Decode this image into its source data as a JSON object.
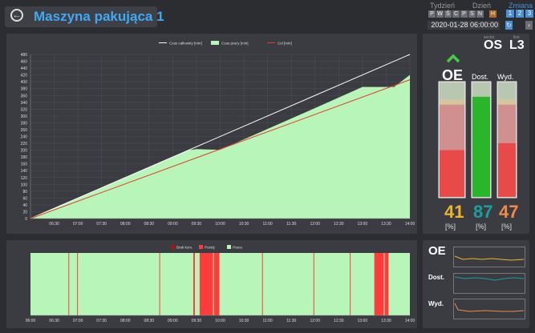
{
  "header": {
    "back_icon": "back-arrow-icon",
    "title": "Maszyna pakująca 1",
    "week_label": "Tydzień",
    "day_label": "Dzień",
    "shift_label": "Zmiana",
    "weekdays": [
      "P",
      "W",
      "Ś",
      "C",
      "P",
      "S",
      "N"
    ],
    "active_weekday_index": 7,
    "active_day_marker": "H",
    "shifts": [
      "1",
      "2",
      "3"
    ],
    "datetime": "2020-01-28 06:00:00"
  },
  "location": {
    "sector_label": "sector",
    "sector_value": "OS",
    "line_label": "line",
    "line_value": "L3"
  },
  "colors": {
    "total_time": "#ffffff",
    "work_time": "#b8f5b8",
    "target": "#e23b2b",
    "failure": "#a01818",
    "stop": "#ff3b3b",
    "work": "#b8f5b8",
    "oe_up_arrow": "#44cc44",
    "oe_value": "#f0b429",
    "availability_value": "#1aa0a0",
    "efficiency_value": "#f08a4a"
  },
  "chart_data": [
    {
      "type": "area",
      "title": "",
      "legend": [
        "Czas całkowity [min]",
        "Czas pracy [min]",
        "Cel [min]"
      ],
      "legend_placement": "top-center",
      "grid": true,
      "ylim": [
        0,
        480
      ],
      "yticks": [
        0,
        20,
        40,
        60,
        80,
        100,
        120,
        140,
        160,
        180,
        200,
        220,
        240,
        260,
        280,
        300,
        320,
        340,
        360,
        380,
        400,
        420,
        440,
        460,
        480
      ],
      "xlim": [
        "06:00",
        "14:00"
      ],
      "xticks": [
        "06:30",
        "07:00",
        "07:30",
        "08:00",
        "08:30",
        "09:00",
        "09:30",
        "10:00",
        "10:30",
        "11:00",
        "11:30",
        "12:00",
        "12:30",
        "13:00",
        "13:30",
        "14:00"
      ],
      "series": [
        {
          "name": "Czas całkowity [min]",
          "kind": "line",
          "points": [
            [
              "06:00",
              0
            ],
            [
              "14:00",
              480
            ]
          ]
        },
        {
          "name": "Czas pracy [min]",
          "kind": "area",
          "points": [
            [
              "06:00",
              0
            ],
            [
              "09:20",
              200
            ],
            [
              "09:30",
              203
            ],
            [
              "10:00",
              201
            ],
            [
              "12:00",
              323
            ],
            [
              "13:00",
              385
            ],
            [
              "13:40",
              385
            ],
            [
              "14:00",
              420
            ]
          ]
        },
        {
          "name": "Cel [min]",
          "kind": "line",
          "points": [
            [
              "06:00",
              0
            ],
            [
              "14:00",
              406
            ]
          ]
        }
      ]
    },
    {
      "type": "timeline",
      "title": "",
      "legend": [
        "Brak kom.",
        "Postój",
        "Praca"
      ],
      "legend_placement": "top-center",
      "xlim": [
        "06:00",
        "14:00"
      ],
      "xticks": [
        "06:00",
        "06:30",
        "07:00",
        "07:30",
        "08:00",
        "08:30",
        "09:00",
        "09:30",
        "10:00",
        "10:30",
        "11:00",
        "11:30",
        "12:00",
        "12:30",
        "13:00",
        "13:30",
        "14:00"
      ],
      "stop_intervals": [
        [
          "06:48",
          "06:49"
        ],
        [
          "06:59",
          "07:00"
        ],
        [
          "08:43",
          "08:44"
        ],
        [
          "09:26",
          "09:28"
        ],
        [
          "09:34",
          "09:51"
        ],
        [
          "09:52",
          "09:59"
        ],
        [
          "10:53",
          "10:54"
        ],
        [
          "11:58",
          "11:59"
        ],
        [
          "12:44",
          "12:45"
        ],
        [
          "13:15",
          "13:27"
        ],
        [
          "13:28",
          "13:33"
        ]
      ]
    }
  ],
  "kpi": {
    "oe_label": "OE",
    "availability_label": "Dost.",
    "efficiency_label": "Wyd.",
    "trend_icon": "chevron-up-icon",
    "oe_value": "41",
    "availability_value": "87",
    "efficiency_value": "47",
    "unit": "[%]",
    "oe_fill": 0.41,
    "availability_fill": 0.87,
    "efficiency_fill": 0.47
  },
  "trends": {
    "oe_label": "OE",
    "availability_label": "Dost.",
    "efficiency_label": "Wyd."
  }
}
